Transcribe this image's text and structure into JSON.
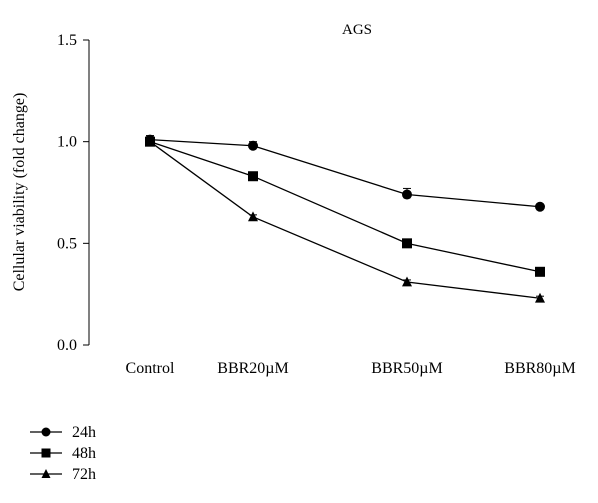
{
  "chart_data": {
    "type": "line",
    "title": "AGS",
    "xlabel": "",
    "ylabel": "Cellular viability (fold change)",
    "categories": [
      "Control",
      "BBR20µM",
      "BBR50µM",
      "BBR80µM"
    ],
    "ylim": [
      0,
      1.5
    ],
    "yticks": [
      "0.0",
      "0.5",
      "1.0",
      "1.5"
    ],
    "grid": false,
    "legend_position": "bottom-left",
    "series": [
      {
        "name": "24h",
        "marker": "circle",
        "values": [
          1.01,
          0.98,
          0.74,
          0.68
        ],
        "errors": [
          0.02,
          0.02,
          0.03,
          0.01
        ]
      },
      {
        "name": "48h",
        "marker": "square",
        "values": [
          1.0,
          0.83,
          0.5,
          0.36
        ],
        "errors": [
          0.01,
          0.01,
          0.01,
          0.01
        ]
      },
      {
        "name": "72h",
        "marker": "triangle",
        "values": [
          1.0,
          0.63,
          0.31,
          0.23
        ],
        "errors": [
          0.01,
          0.01,
          0.01,
          0.01
        ]
      }
    ],
    "colors": {
      "line": "#000000",
      "background": "#ffffff"
    }
  }
}
